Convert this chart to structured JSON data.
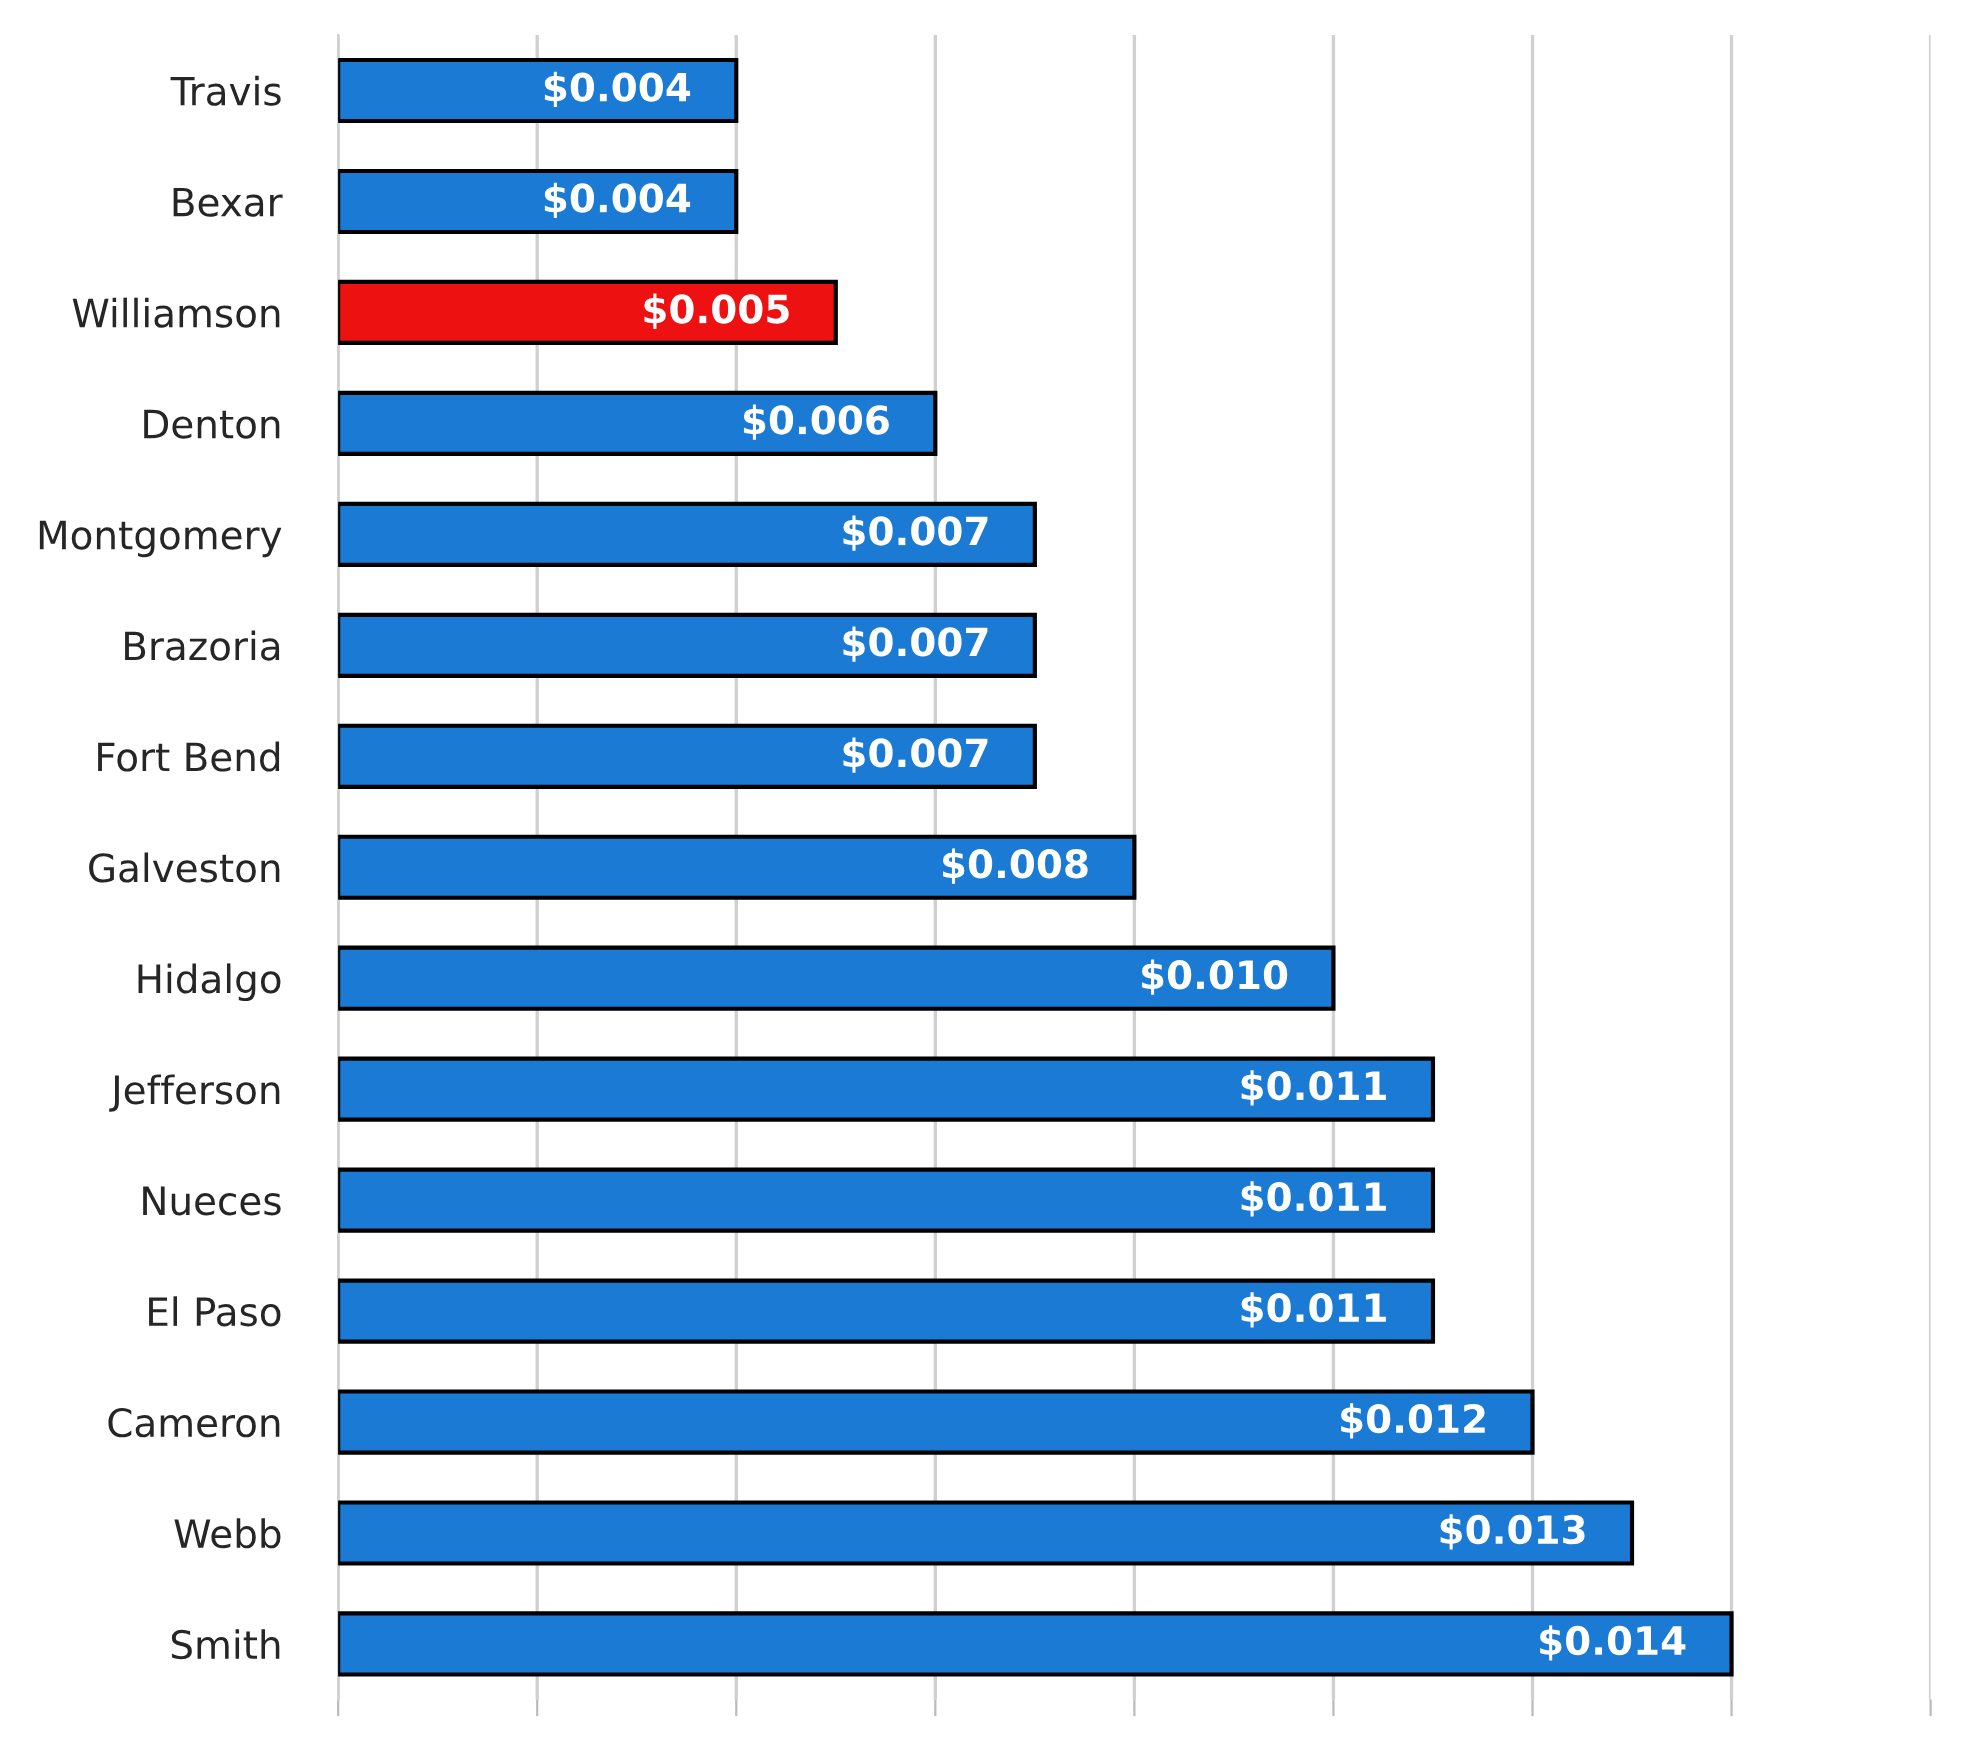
{
  "chart_data": {
    "type": "bar",
    "orientation": "horizontal",
    "categories": [
      "Travis",
      "Bexar",
      "Williamson",
      "Denton",
      "Montgomery",
      "Brazoria",
      "Fort Bend",
      "Galveston",
      "Hidalgo",
      "Jefferson",
      "Nueces",
      "El Paso",
      "Cameron",
      "Webb",
      "Smith"
    ],
    "values": [
      0.004,
      0.004,
      0.005,
      0.006,
      0.007,
      0.007,
      0.007,
      0.008,
      0.01,
      0.011,
      0.011,
      0.011,
      0.012,
      0.013,
      0.014
    ],
    "value_labels": [
      "$0.004",
      "$0.004",
      "$0.005",
      "$0.006",
      "$0.007",
      "$0.007",
      "$0.007",
      "$0.008",
      "$0.010",
      "$0.011",
      "$0.011",
      "$0.011",
      "$0.012",
      "$0.013",
      "$0.014"
    ],
    "colors": [
      "#1a7ad4",
      "#1a7ad4",
      "#ee1111",
      "#1a7ad4",
      "#1a7ad4",
      "#1a7ad4",
      "#1a7ad4",
      "#1a7ad4",
      "#1a7ad4",
      "#1a7ad4",
      "#1a7ad4",
      "#1a7ad4",
      "#1a7ad4",
      "#1a7ad4",
      "#1a7ad4"
    ],
    "xlim": [
      0,
      0.016
    ],
    "xticks": [
      {
        "value": 0,
        "label": null
      },
      {
        "value": 0.002,
        "label": null
      },
      {
        "value": 0.004,
        "label": null
      },
      {
        "value": 0.006,
        "label": null
      },
      {
        "value": 0.008,
        "label": null
      },
      {
        "value": 0.01,
        "label": null
      },
      {
        "value": 0.012,
        "label": null
      },
      {
        "value": 0.014,
        "label": null
      },
      {
        "value": 0.016,
        "label": null
      }
    ],
    "grid": "x",
    "tick_labels": "y"
  }
}
